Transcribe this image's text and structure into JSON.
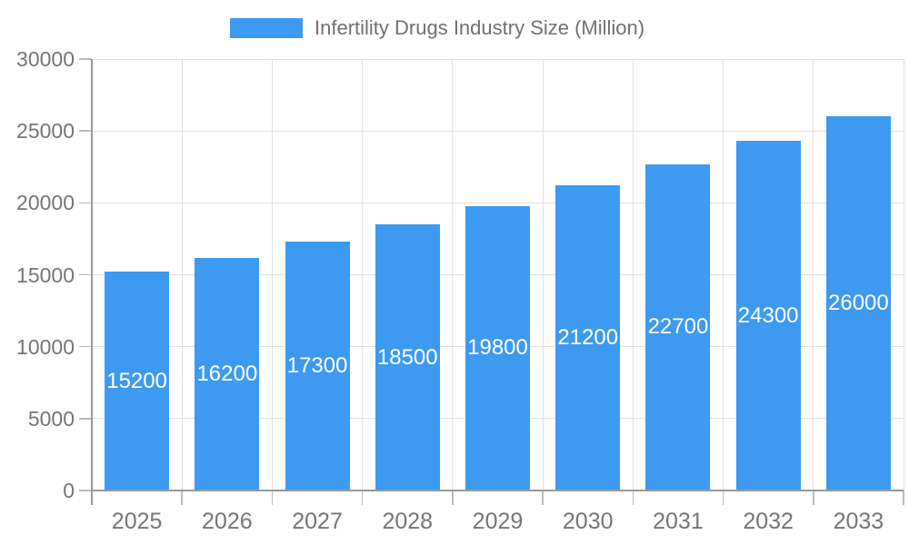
{
  "legend": {
    "label": "Infertility Drugs Industry Size (Million)"
  },
  "colors": {
    "bar": "#3D9AF0",
    "grid": "#e0e0e0",
    "axis": "#999999",
    "tick": "#bbbbbb",
    "axis_label": "#757575",
    "legend_text": "#707070",
    "bar_label": "#ffffff",
    "background": "#ffffff"
  },
  "chart_data": {
    "type": "bar",
    "title": "Infertility Drugs Industry Size (Million)",
    "series_name": "Infertility Drugs Industry Size (Million)",
    "categories": [
      "2025",
      "2026",
      "2027",
      "2028",
      "2029",
      "2030",
      "2031",
      "2032",
      "2033"
    ],
    "values": [
      15200,
      16200,
      17300,
      18500,
      19800,
      21200,
      22700,
      24300,
      26000
    ],
    "xlabel": "",
    "ylabel": "",
    "ylim": [
      0,
      30000
    ],
    "ytick_step": 5000,
    "y_tick_labels": [
      "0",
      "5000",
      "10000",
      "15000",
      "20000",
      "25000",
      "30000"
    ],
    "grid": true,
    "legend_position": "top-center",
    "bar_value_labels": "inside-center-white"
  }
}
